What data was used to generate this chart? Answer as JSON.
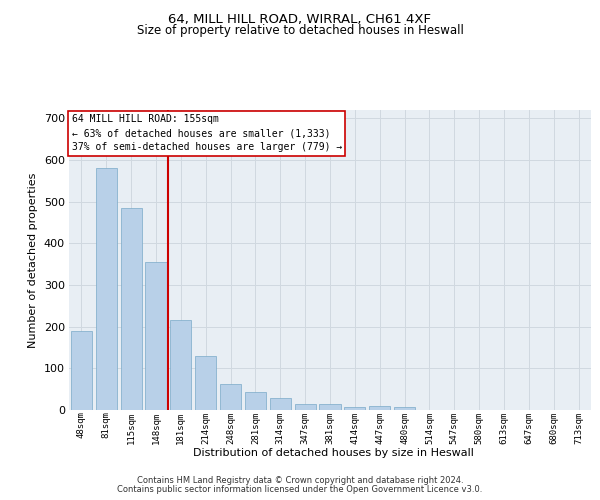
{
  "title1": "64, MILL HILL ROAD, WIRRAL, CH61 4XF",
  "title2": "Size of property relative to detached houses in Heswall",
  "xlabel": "Distribution of detached houses by size in Heswall",
  "ylabel": "Number of detached properties",
  "bar_labels": [
    "48sqm",
    "81sqm",
    "115sqm",
    "148sqm",
    "181sqm",
    "214sqm",
    "248sqm",
    "281sqm",
    "314sqm",
    "347sqm",
    "381sqm",
    "414sqm",
    "447sqm",
    "480sqm",
    "514sqm",
    "547sqm",
    "580sqm",
    "613sqm",
    "647sqm",
    "680sqm",
    "713sqm"
  ],
  "bar_values": [
    190,
    580,
    485,
    355,
    215,
    130,
    62,
    43,
    30,
    15,
    15,
    8,
    10,
    7,
    0,
    0,
    0,
    0,
    0,
    0,
    0
  ],
  "bar_color": "#b8d0e8",
  "bar_edge_color": "#7aaac8",
  "vline_color": "#cc0000",
  "annotation_title": "64 MILL HILL ROAD: 155sqm",
  "annotation_line1": "← 63% of detached houses are smaller (1,333)",
  "annotation_line2": "37% of semi-detached houses are larger (779) →",
  "annotation_box_color": "#cc0000",
  "ylim": [
    0,
    720
  ],
  "yticks": [
    0,
    100,
    200,
    300,
    400,
    500,
    600,
    700
  ],
  "grid_color": "#d0d8e0",
  "background_color": "#e8eef4",
  "footer1": "Contains HM Land Registry data © Crown copyright and database right 2024.",
  "footer2": "Contains public sector information licensed under the Open Government Licence v3.0."
}
